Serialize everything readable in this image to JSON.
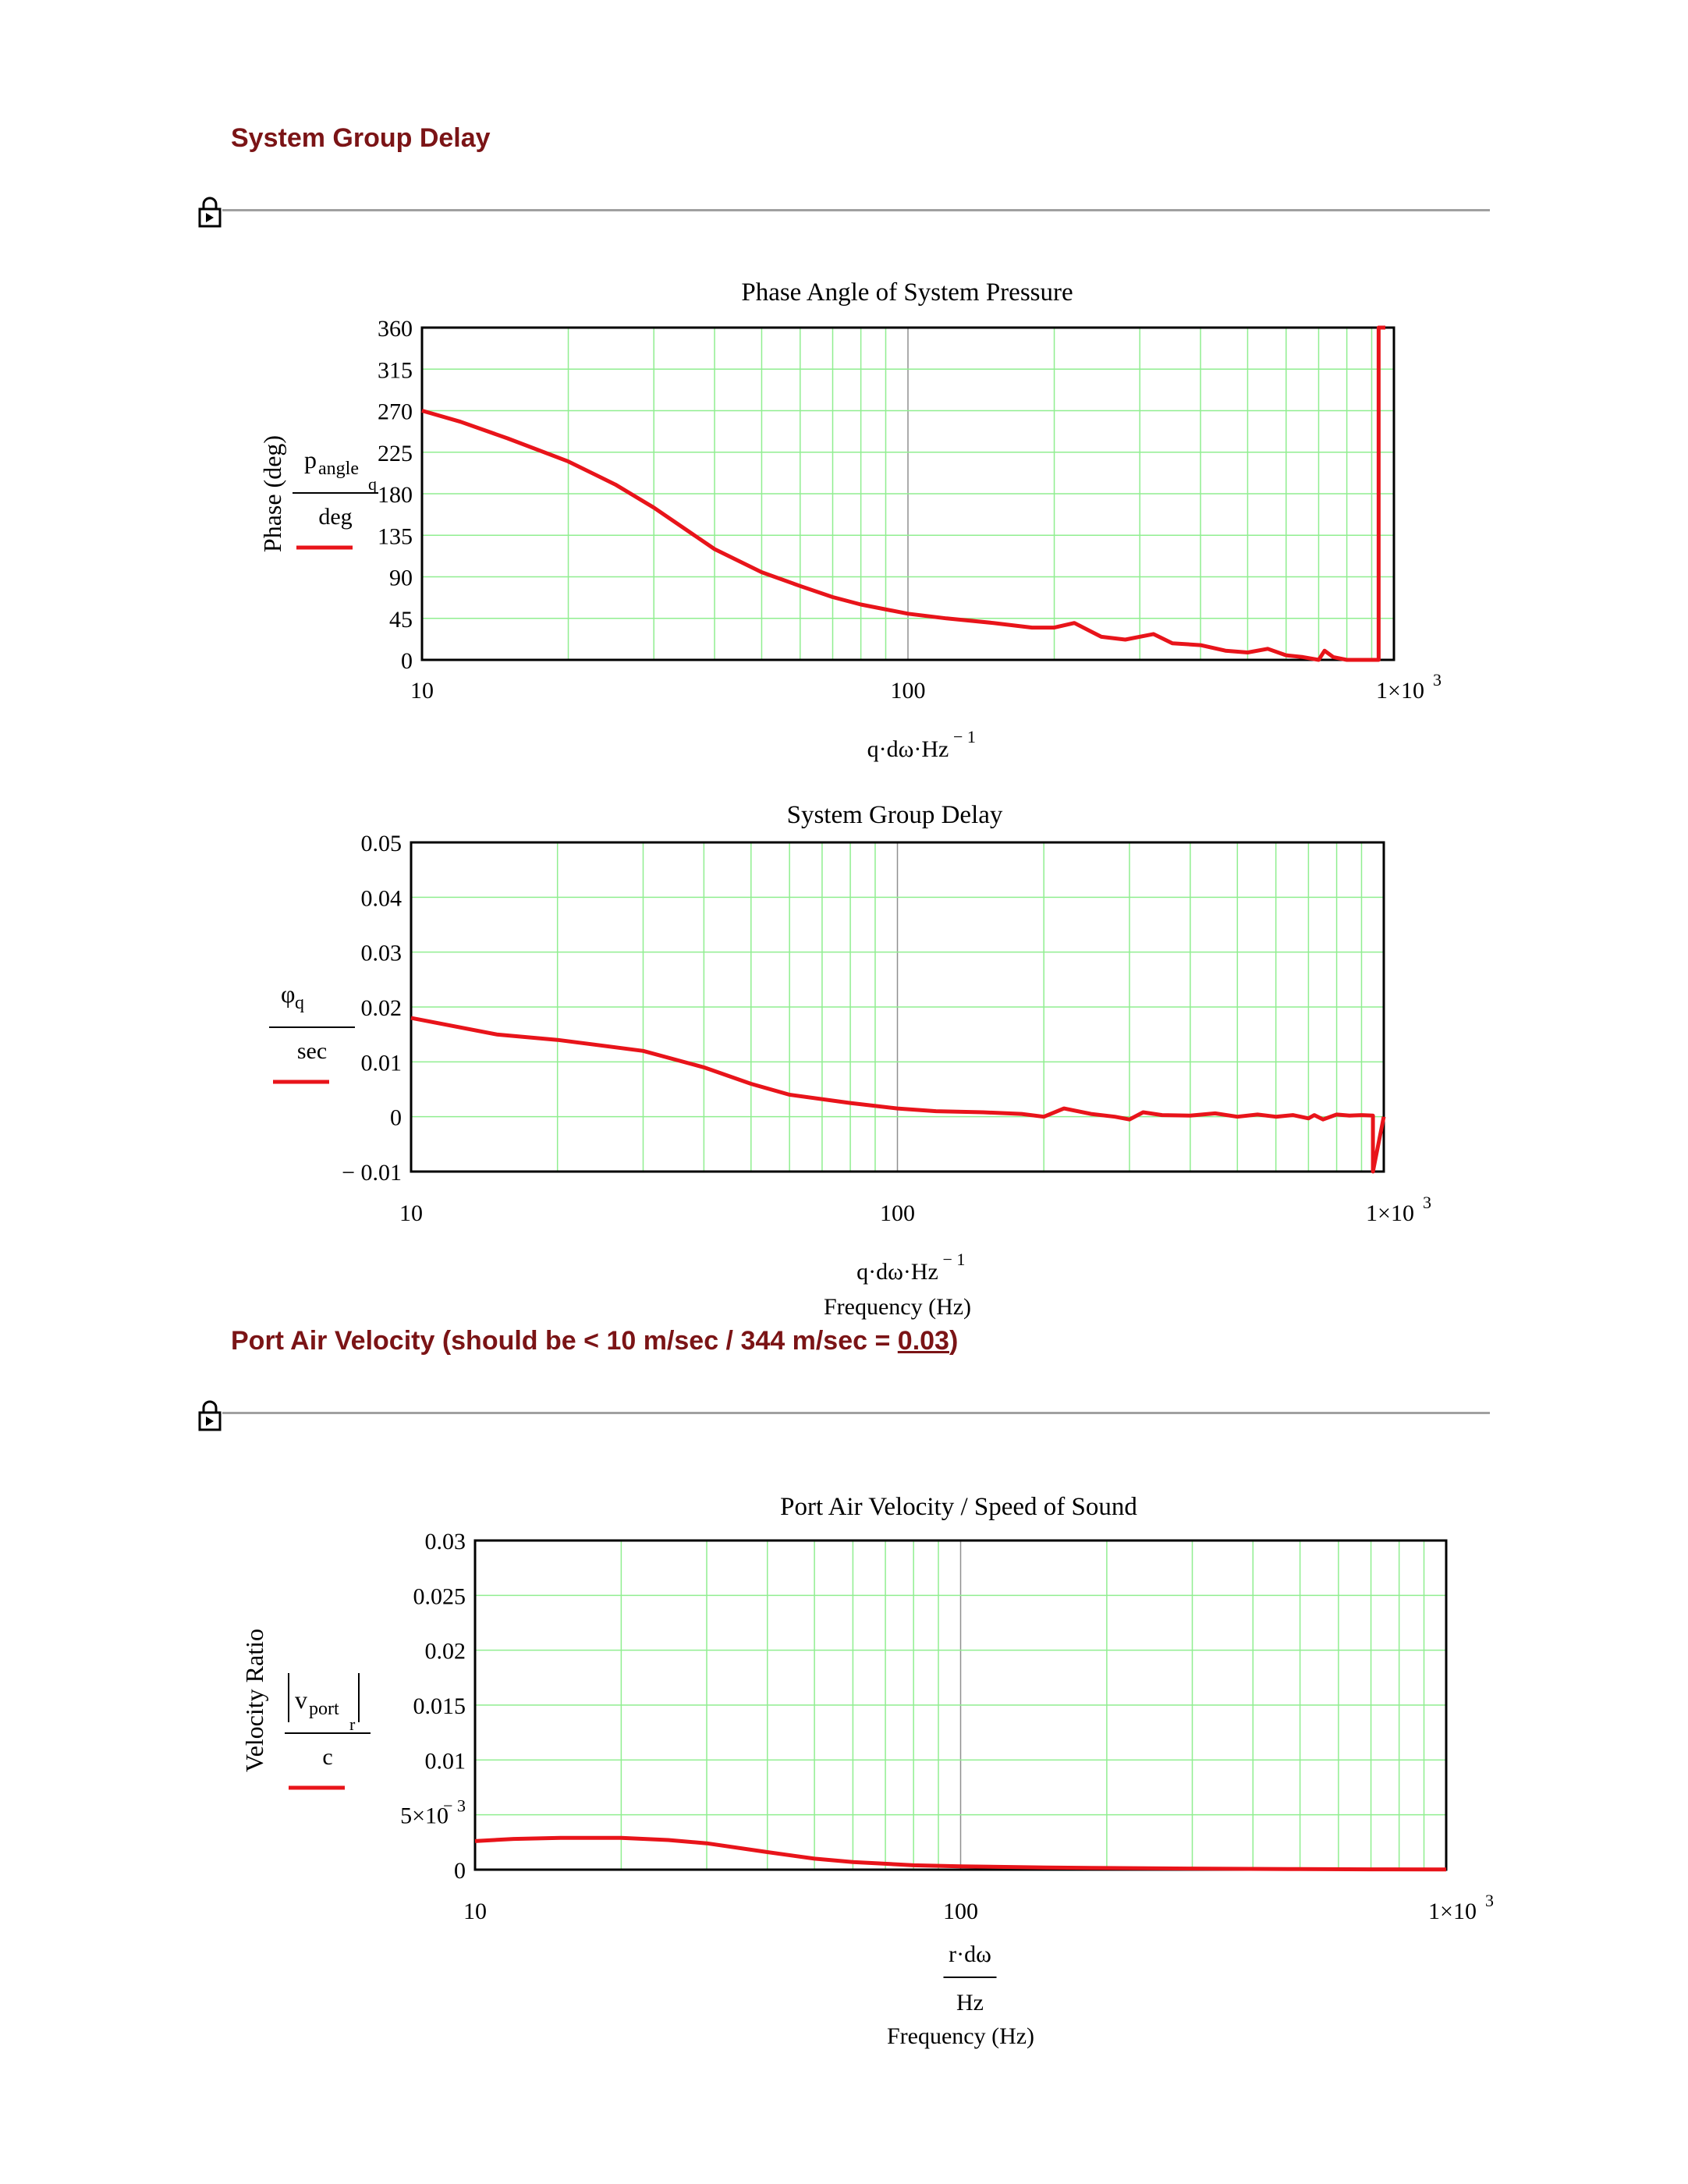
{
  "sections": {
    "group_delay_heading": "System Group Delay",
    "velocity_heading_pre": "Port Air Velocity (should be < 10 m/sec / 344 m/sec = ",
    "velocity_heading_value": "0.03",
    "velocity_heading_post": ")"
  },
  "colors": {
    "series": "#e8141a",
    "grid": "#90ee90",
    "heading": "#7b1416",
    "rule": "#a0a0a0"
  },
  "icons": [
    "lock-icon",
    "lock-icon"
  ],
  "chart_data": [
    {
      "id": "phase",
      "type": "line",
      "title": "Phase Angle of System Pressure",
      "ylabel_outer": "Phase (deg)",
      "legend_num": "p",
      "legend_num_sub": "angle",
      "legend_num_sub2": "q",
      "legend_den": "deg",
      "xlabel_main": "q·dω·Hz",
      "xlabel_sup": "− 1",
      "xlabel_sub": "",
      "x_scale": "log",
      "xlim": [
        10,
        1000
      ],
      "ylim": [
        0,
        360
      ],
      "yticks": [
        "0",
        "45",
        "90",
        "135",
        "180",
        "225",
        "270",
        "315",
        "360"
      ],
      "xticks": [
        {
          "v": 10,
          "t": "10"
        },
        {
          "v": 100,
          "t": "100"
        },
        {
          "v": 1000,
          "t": "1×10",
          "sup": "3"
        }
      ],
      "grid": true,
      "series": [
        {
          "x": [
            10,
            12,
            15,
            20,
            25,
            30,
            40,
            50,
            60,
            70,
            80,
            100,
            120,
            150,
            180,
            200,
            220,
            250,
            280,
            320,
            350,
            400,
            450,
            500,
            550,
            600,
            650,
            700,
            720,
            750,
            800,
            850,
            900,
            930,
            930,
            960
          ],
          "y": [
            270,
            258,
            240,
            215,
            190,
            165,
            120,
            95,
            80,
            68,
            60,
            50,
            45,
            40,
            35,
            35,
            40,
            25,
            22,
            28,
            18,
            16,
            10,
            8,
            12,
            5,
            3,
            0,
            10,
            3,
            0,
            0,
            0,
            0,
            360,
            360
          ]
        }
      ]
    },
    {
      "id": "delay",
      "type": "line",
      "title": "System Group Delay",
      "ylabel_outer": "",
      "legend_num": "φ",
      "legend_num_sub": "q",
      "legend_num_sub2": "",
      "legend_den": "sec",
      "xlabel_main": "q·dω·Hz",
      "xlabel_sup": "− 1",
      "xlabel_sub": "Frequency (Hz)",
      "x_scale": "log",
      "xlim": [
        10,
        1000
      ],
      "ylim": [
        -0.01,
        0.05
      ],
      "yticks": [
        "− 0.01",
        "0",
        "0.01",
        "0.02",
        "0.03",
        "0.04",
        "0.05"
      ],
      "xticks": [
        {
          "v": 10,
          "t": "10"
        },
        {
          "v": 100,
          "t": "100"
        },
        {
          "v": 1000,
          "t": "1×10",
          "sup": "3"
        }
      ],
      "grid": true,
      "series": [
        {
          "x": [
            10,
            15,
            20,
            30,
            40,
            50,
            60,
            80,
            100,
            120,
            150,
            180,
            200,
            220,
            250,
            280,
            300,
            320,
            350,
            400,
            450,
            500,
            550,
            600,
            650,
            700,
            720,
            750,
            800,
            850,
            900,
            950,
            950,
            1000
          ],
          "y": [
            0.018,
            0.015,
            0.014,
            0.012,
            0.009,
            0.006,
            0.004,
            0.0025,
            0.0015,
            0.001,
            0.0008,
            0.0005,
            0.0,
            0.0015,
            0.0005,
            0.0,
            -0.0005,
            0.0008,
            0.0003,
            0.0002,
            0.0006,
            0.0,
            0.0004,
            0.0,
            0.0003,
            -0.0003,
            0.0003,
            -0.0005,
            0.0004,
            0.0002,
            0.0003,
            0.0002,
            -0.01,
            0.0
          ]
        }
      ]
    },
    {
      "id": "velocity",
      "type": "line",
      "title": "Port Air Velocity / Speed of Sound",
      "ylabel_outer": "Velocity Ratio",
      "legend_num": "v",
      "legend_num_sub": "port",
      "legend_num_sub2": "r",
      "legend_den": "c",
      "xlabel_main": "r·dω",
      "xlabel_den": "Hz",
      "xlabel_sup": "",
      "xlabel_sub": "Frequency (Hz)",
      "x_scale": "log",
      "xlim": [
        10,
        1000
      ],
      "ylim": [
        0,
        0.03
      ],
      "yticks": [
        "0",
        "5×10",
        "0.01",
        "0.015",
        "0.02",
        "0.025",
        "0.03"
      ],
      "ytick_sup": {
        "1": "− 3"
      },
      "xticks": [
        {
          "v": 10,
          "t": "10"
        },
        {
          "v": 100,
          "t": "100"
        },
        {
          "v": 1000,
          "t": "1×10",
          "sup": "3"
        }
      ],
      "grid": true,
      "series": [
        {
          "x": [
            10,
            12,
            15,
            20,
            25,
            30,
            40,
            50,
            60,
            80,
            100,
            150,
            200,
            300,
            500,
            700,
            1000
          ],
          "y": [
            0.0026,
            0.0028,
            0.0029,
            0.0029,
            0.0027,
            0.0024,
            0.0016,
            0.001,
            0.0007,
            0.0004,
            0.0003,
            0.0002,
            0.00015,
            0.0001,
            5e-05,
            3e-05,
            2e-05
          ]
        }
      ]
    }
  ]
}
